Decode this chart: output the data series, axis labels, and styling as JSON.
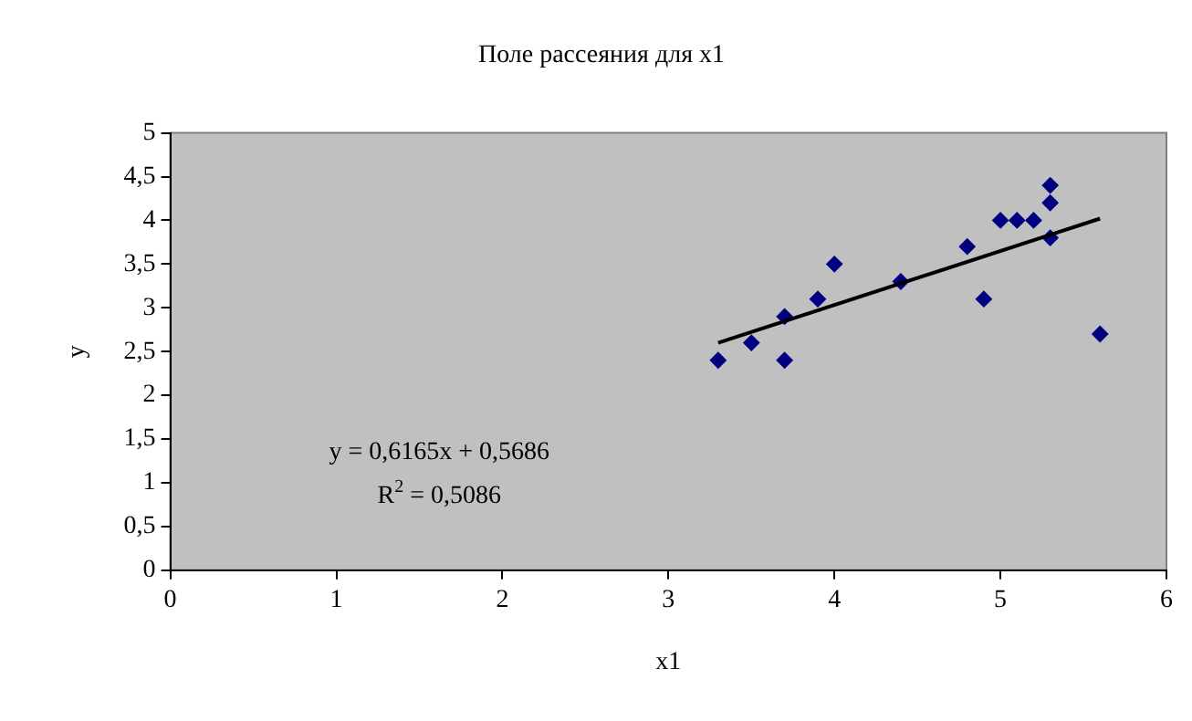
{
  "chart_data": {
    "type": "scatter",
    "title": "Поле рассеяния для x1",
    "xlabel": "x1",
    "ylabel": "y",
    "xlim": [
      0,
      6
    ],
    "xticks": [
      0,
      1,
      2,
      3,
      4,
      5,
      6
    ],
    "ylim": [
      0,
      5
    ],
    "yticks": [
      0,
      {
        "value": 0.5,
        "label": "0,5"
      },
      1,
      {
        "value": 1.5,
        "label": "1,5"
      },
      2,
      {
        "value": 2.5,
        "label": "2,5"
      },
      3,
      {
        "value": 3.5,
        "label": "3,5"
      },
      4,
      {
        "value": 4.5,
        "label": "4,5"
      },
      5
    ],
    "grid": false,
    "legend": false,
    "marker": "diamond",
    "series": [
      {
        "type": "scatter",
        "color": "#000080",
        "x": [
          3.3,
          3.5,
          3.7,
          3.7,
          3.9,
          4.0,
          4.4,
          4.8,
          4.9,
          5.0,
          5.1,
          5.2,
          5.3,
          5.3,
          5.3,
          5.6
        ],
        "values": [
          2.4,
          2.6,
          2.9,
          2.4,
          3.1,
          3.5,
          3.3,
          3.7,
          3.1,
          4.0,
          4.0,
          4.0,
          4.4,
          4.2,
          3.8,
          2.7
        ]
      },
      {
        "type": "line",
        "color": "#000000",
        "marker": "none",
        "x": [
          3.3,
          5.6
        ],
        "values": [
          2.6,
          4.02
        ]
      }
    ],
    "annotations": [
      "y = 0,6165x + 0,5686",
      "R$^{2}$ = 0,5086"
    ]
  }
}
